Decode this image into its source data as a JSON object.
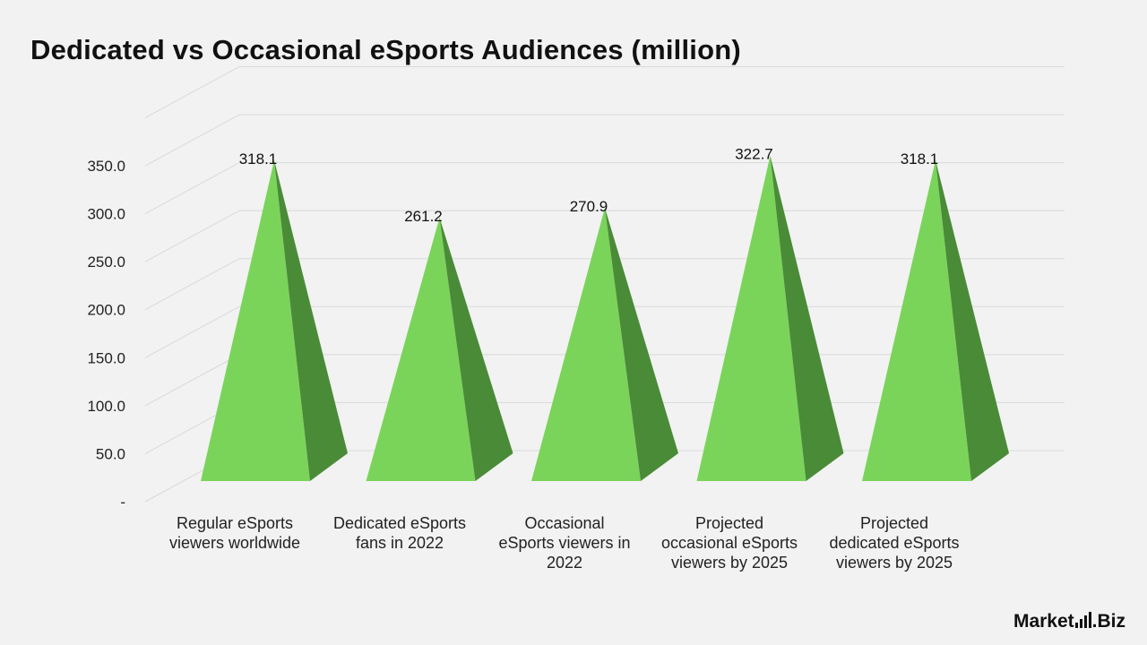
{
  "title": "Dedicated vs Occasional eSports Audiences (million)",
  "brand": {
    "part1": "Market",
    "dot": ".",
    "part2": "Biz"
  },
  "colors": {
    "front": "#7ad45a",
    "side": "#4a8b38",
    "grid": "#d9d9d9"
  },
  "chart_data": {
    "type": "bar",
    "shape": "3d-pyramid",
    "title": "Dedicated vs Occasional eSports Audiences (million)",
    "categories": [
      [
        "Regular eSports",
        "viewers worldwide"
      ],
      [
        "Dedicated eSports",
        "fans in 2022"
      ],
      [
        "Occasional",
        "eSports viewers in",
        "2022"
      ],
      [
        "Projected",
        "occasional eSports",
        "viewers by 2025"
      ],
      [
        "Projected",
        "dedicated eSports",
        "viewers by 2025"
      ]
    ],
    "values": [
      318.1,
      261.2,
      270.9,
      322.7,
      318.1
    ],
    "value_labels": [
      "318.1",
      "261.2",
      "270.9",
      "322.7",
      "318.1"
    ],
    "yticks": [
      "-",
      "50.0",
      "100.0",
      "150.0",
      "200.0",
      "250.0",
      "300.0",
      "350.0"
    ],
    "ylim": [
      0,
      350
    ],
    "grid": true,
    "legend": "none"
  }
}
